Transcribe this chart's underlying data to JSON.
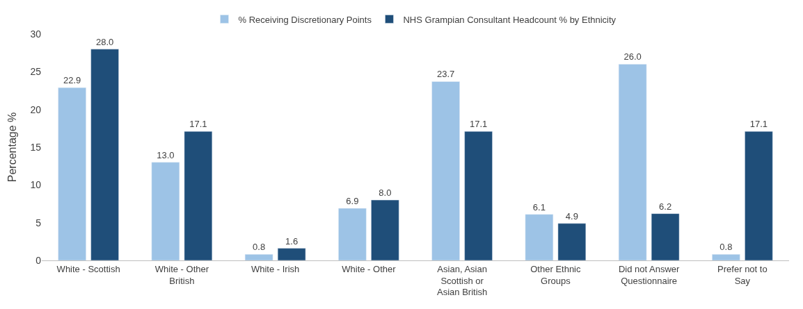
{
  "chart_data": {
    "type": "bar",
    "ylabel": "Percentage %",
    "categories": [
      "White - Scottish",
      "White - Other British",
      "White - Irish",
      "White - Other",
      "Asian, Asian Scottish or Asian British",
      "Other Ethnic Groups",
      "Did not Answer Questionnaire",
      "Prefer not to Say"
    ],
    "series": [
      {
        "name": "% Receiving Discretionary Points",
        "color": "#9dc3e6",
        "values": [
          22.9,
          13.0,
          0.8,
          6.9,
          23.7,
          6.1,
          26.0,
          0.8
        ],
        "value_labels": [
          "22.9",
          "13.0",
          "0.8",
          "6.9",
          "23.7",
          "6.1",
          "26.0",
          "0.8"
        ]
      },
      {
        "name": "NHS Grampian Consultant Headcount % by Ethnicity",
        "color": "#1f4e79",
        "values": [
          28.0,
          17.1,
          1.6,
          8.0,
          17.1,
          4.9,
          6.2,
          17.1
        ],
        "value_labels": [
          "28.0",
          "17.1",
          "1.6",
          "8.0",
          "17.1",
          "4.9",
          "6.2",
          "17.1"
        ]
      }
    ],
    "ylim": [
      0,
      30
    ],
    "yticks": [
      0,
      5,
      10,
      15,
      20,
      25,
      30
    ],
    "grid": false,
    "legend": "top"
  }
}
